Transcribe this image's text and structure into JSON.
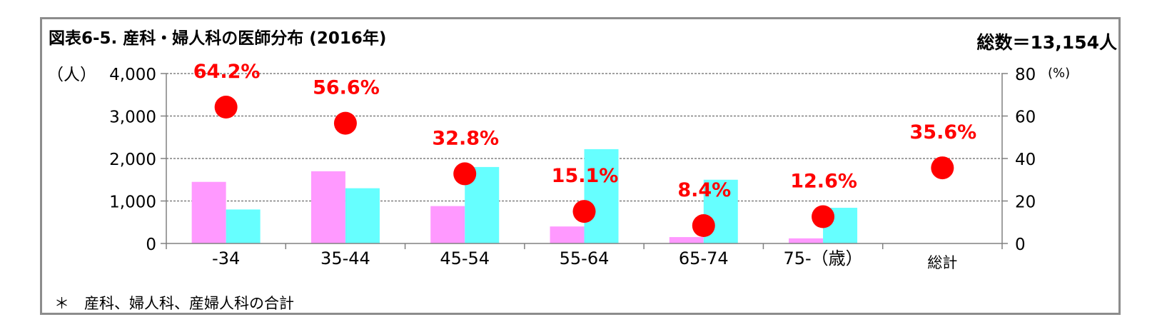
{
  "title": "図表6-5. 産科・婦人科の医師分布 (2016年)",
  "total_label": "総数＝13,154人",
  "footnote": "＊　産科、婦人科、産婦人科の合計",
  "colors": {
    "bar_a": "#ff99ff",
    "bar_b": "#66ffff",
    "dot": "#ff0000",
    "pct_label": "#ff0000",
    "grid": "#808080"
  },
  "chart_data": {
    "type": "bar",
    "categories": [
      "-34",
      "35-44",
      "45-54",
      "55-64",
      "65-74",
      "75-（歳）",
      "総計"
    ],
    "series": [
      {
        "type": "bar",
        "axis": "left",
        "values": [
          1450,
          1700,
          880,
          400,
          150,
          120,
          null
        ]
      },
      {
        "type": "bar",
        "axis": "left",
        "values": [
          800,
          1300,
          1800,
          2220,
          1500,
          840,
          null
        ]
      },
      {
        "type": "scatter",
        "axis": "right",
        "values": [
          64.2,
          56.6,
          32.8,
          15.1,
          8.4,
          12.6,
          35.6
        ],
        "labels": [
          "64.2%",
          "56.6%",
          "32.8%",
          "15.1%",
          "8.4%",
          "12.6%",
          "35.6%"
        ]
      }
    ],
    "ylabel_left": "（人）",
    "ylabel_right": "(%)",
    "ylim_left": [
      0,
      4000
    ],
    "ylim_right": [
      0,
      80
    ],
    "yticks_left": [
      "0",
      "1,000",
      "2,000",
      "3,000",
      "4,000"
    ],
    "yticks_right": [
      "0",
      "20",
      "40",
      "60",
      "80"
    ],
    "grid": true,
    "legend": "none"
  }
}
